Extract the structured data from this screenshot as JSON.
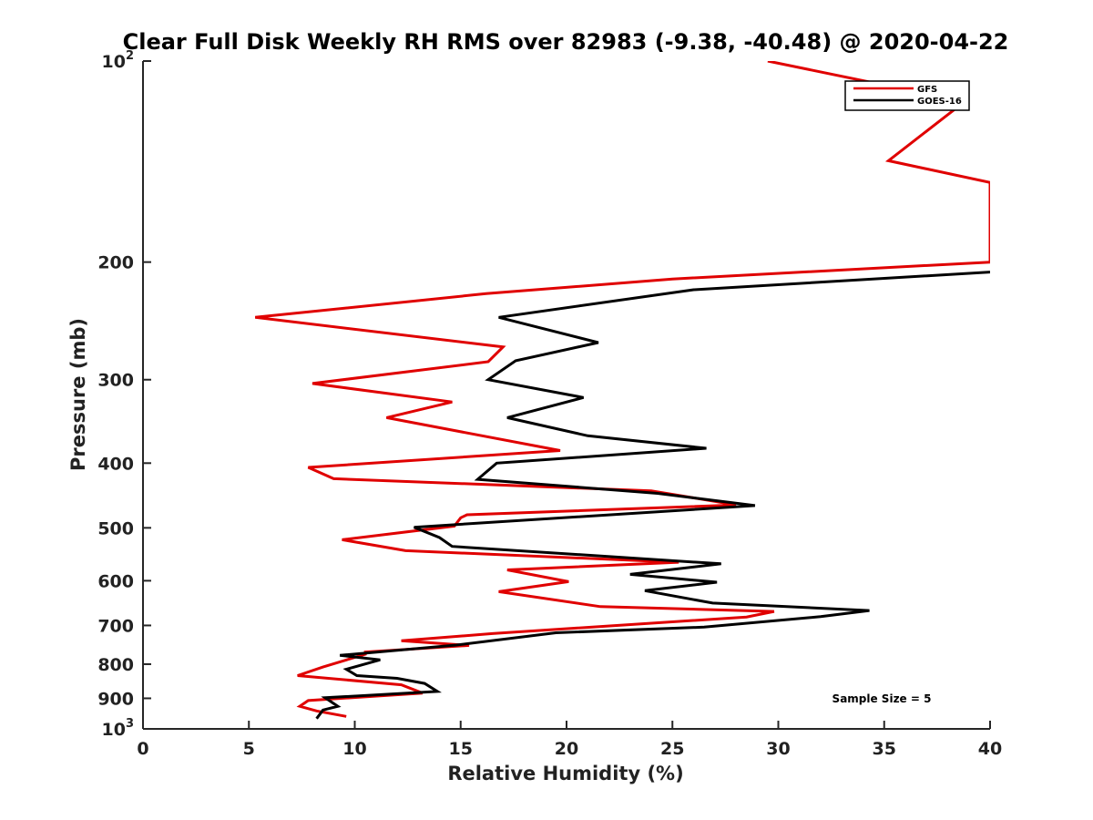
{
  "chart_data": {
    "type": "line",
    "title": "Clear Full Disk Weekly RH RMS over 82983 (-9.38, -40.48) @ 2020-04-22",
    "xlabel": "Relative Humidity (%)",
    "ylabel": "Pressure (mb)",
    "xlim": [
      0,
      40
    ],
    "ylim": [
      100,
      1000
    ],
    "yscale": "log",
    "y_reversed": true,
    "xticks": [
      0,
      5,
      10,
      15,
      20,
      25,
      30,
      35,
      40
    ],
    "yticks": [
      {
        "value": 100,
        "base": "10",
        "exp": "2"
      },
      {
        "value": 200,
        "label": "200"
      },
      {
        "value": 300,
        "label": "300"
      },
      {
        "value": 400,
        "label": "400"
      },
      {
        "value": 500,
        "label": "500"
      },
      {
        "value": 600,
        "label": "600"
      },
      {
        "value": 700,
        "label": "700"
      },
      {
        "value": 800,
        "label": "800"
      },
      {
        "value": 900,
        "label": "900"
      },
      {
        "value": 1000,
        "base": "10",
        "exp": "3"
      }
    ],
    "legend_position": "top-right",
    "annotation": "Sample Size = 5",
    "series": [
      {
        "name": "GFS",
        "color": "#e00000",
        "points": [
          [
            29.5,
            100
          ],
          [
            38.8,
            115
          ],
          [
            35.2,
            141
          ],
          [
            40.0,
            152
          ],
          [
            40.0,
            200
          ],
          [
            25.0,
            212
          ],
          [
            16.2,
            223
          ],
          [
            5.3,
            242
          ],
          [
            17.0,
            268
          ],
          [
            16.3,
            282
          ],
          [
            8.0,
            304
          ],
          [
            14.6,
            324
          ],
          [
            11.5,
            342
          ],
          [
            19.7,
            383
          ],
          [
            7.8,
            406
          ],
          [
            9.0,
            422
          ],
          [
            24.0,
            440
          ],
          [
            28.0,
            462
          ],
          [
            15.3,
            478
          ],
          [
            15.0,
            483
          ],
          [
            14.7,
            497
          ],
          [
            9.4,
            521
          ],
          [
            12.4,
            541
          ],
          [
            25.3,
            563
          ],
          [
            17.2,
            578
          ],
          [
            20.1,
            602
          ],
          [
            16.8,
            623
          ],
          [
            21.6,
            656
          ],
          [
            29.8,
            667
          ],
          [
            28.5,
            680
          ],
          [
            16.5,
            720
          ],
          [
            12.2,
            738
          ],
          [
            15.4,
            750
          ],
          [
            10.5,
            767
          ],
          [
            10.5,
            773
          ],
          [
            8.5,
            808
          ],
          [
            7.3,
            832
          ],
          [
            12.2,
            859
          ],
          [
            13.2,
            884
          ],
          [
            7.8,
            907
          ],
          [
            7.4,
            925
          ],
          [
            8.2,
            940
          ],
          [
            9.6,
            958
          ]
        ]
      },
      {
        "name": "GOES-16",
        "color": "#000000",
        "points": [
          [
            40.0,
            207
          ],
          [
            26.0,
            220
          ],
          [
            16.8,
            242
          ],
          [
            21.5,
            264
          ],
          [
            17.6,
            281
          ],
          [
            16.3,
            300
          ],
          [
            20.8,
            319
          ],
          [
            17.2,
            342
          ],
          [
            21.0,
            364
          ],
          [
            26.6,
            380
          ],
          [
            16.7,
            400
          ],
          [
            15.8,
            423
          ],
          [
            24.3,
            444
          ],
          [
            28.9,
            463
          ],
          [
            12.8,
            499
          ],
          [
            14.0,
            517
          ],
          [
            14.6,
            533
          ],
          [
            27.3,
            566
          ],
          [
            23.0,
            587
          ],
          [
            27.1,
            603
          ],
          [
            23.7,
            621
          ],
          [
            26.9,
            648
          ],
          [
            34.3,
            665
          ],
          [
            32.0,
            679
          ],
          [
            26.5,
            704
          ],
          [
            19.5,
            718
          ],
          [
            14.8,
            749
          ],
          [
            9.3,
            776
          ],
          [
            11.2,
            788
          ],
          [
            9.6,
            814
          ],
          [
            10.1,
            832
          ],
          [
            12.0,
            840
          ],
          [
            13.3,
            855
          ],
          [
            13.9,
            879
          ],
          [
            8.6,
            898
          ],
          [
            9.2,
            925
          ],
          [
            8.5,
            937
          ],
          [
            8.2,
            965
          ]
        ]
      }
    ]
  }
}
